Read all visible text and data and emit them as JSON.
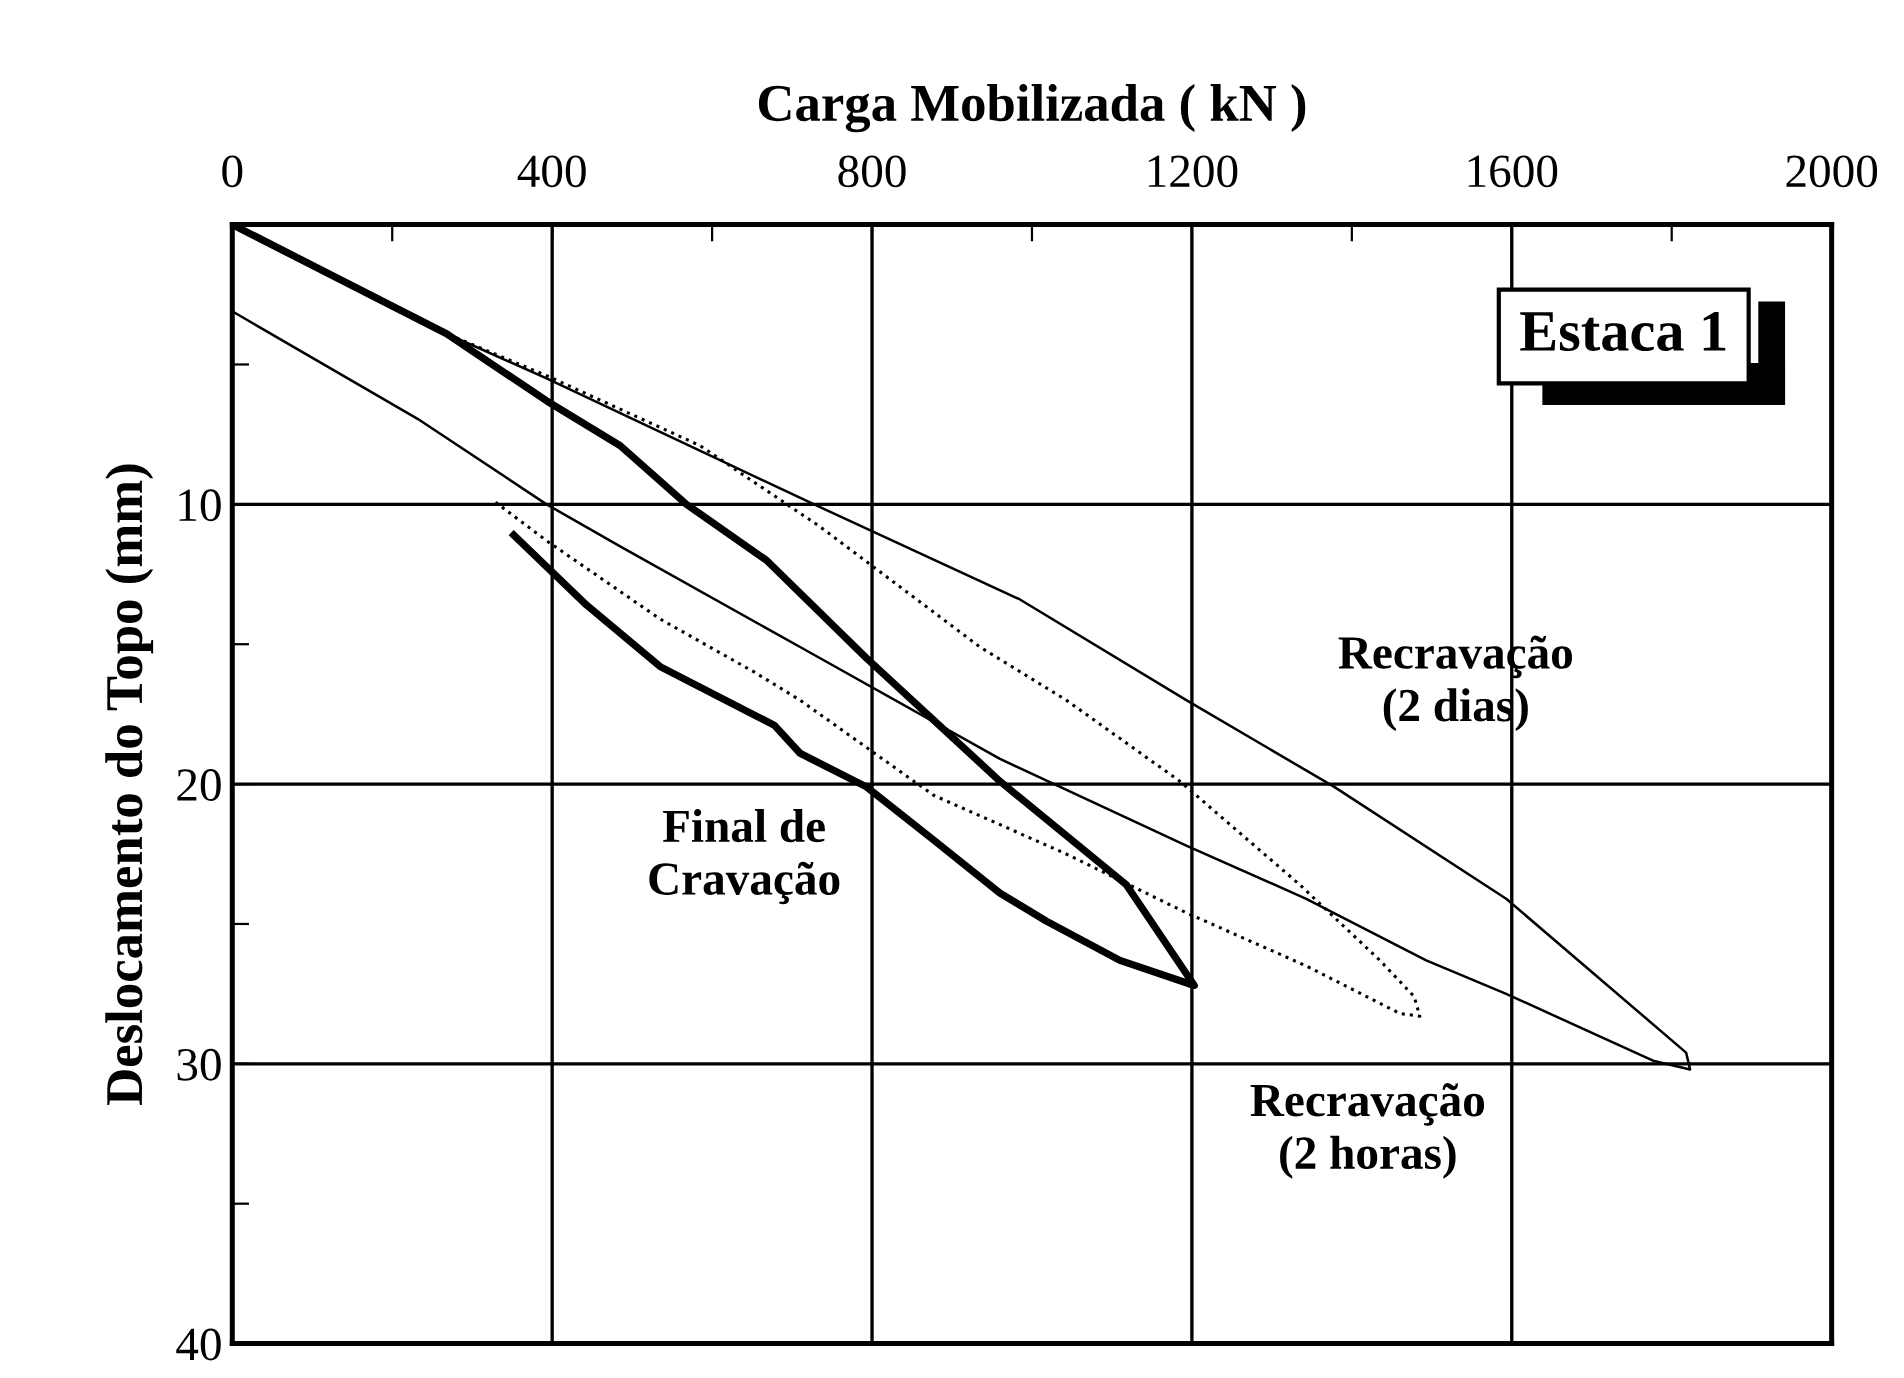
{
  "chart_data": {
    "type": "line",
    "xlabel": "Carga Mobilizada ( kN )",
    "ylabel": "Deslocamento do Topo (mm)",
    "xlim": [
      0,
      2000
    ],
    "ylim": [
      40,
      0
    ],
    "xticks": [
      0,
      {
        "value": 200,
        "label": null
      },
      400,
      {
        "value": 600,
        "label": null
      },
      800,
      {
        "value": 1000,
        "label": null
      },
      1200,
      {
        "value": 1400,
        "label": null
      },
      1600,
      {
        "value": 1800,
        "label": null
      },
      2000
    ],
    "yticks": [
      {
        "value": 0,
        "label": null
      },
      {
        "value": 5,
        "label": null
      },
      10,
      {
        "value": 15,
        "label": null
      },
      20,
      {
        "value": 25,
        "label": null
      },
      30,
      {
        "value": 35,
        "label": null
      },
      40
    ],
    "grid": true,
    "marker": "none",
    "series": [
      {
        "color": "#000000",
        "line_style": "solid",
        "x": [
          0,
          268,
          393,
          485,
          568,
          668,
          793,
          960,
          1118,
          1203,
          1110,
          1018,
          960,
          877,
          793,
          710,
          678,
          535,
          443,
          352
        ],
        "values": [
          0,
          3.9,
          6.3,
          7.9,
          10,
          12,
          15.5,
          19.9,
          23.6,
          27.2,
          26.3,
          24.9,
          23.9,
          22,
          20.1,
          18.9,
          17.9,
          15.8,
          13.6,
          11.1
        ]
      },
      {
        "color": "#000000",
        "line_style": "dotted",
        "x": [
          0,
          268,
          393,
          585,
          735,
          935,
          1043,
          1185,
          1335,
          1435,
          1478,
          1485,
          1460,
          1343,
          1193,
          1043,
          877,
          710,
          653,
          535,
          393,
          328
        ],
        "values": [
          0,
          3.9,
          5.4,
          7.9,
          10.8,
          15.1,
          17,
          19.9,
          23.6,
          26.3,
          27.6,
          28.3,
          28.2,
          26.5,
          24.6,
          22.5,
          20.4,
          17,
          16,
          14.1,
          11.3,
          9.9
        ]
      },
      {
        "color": "#000000",
        "line_style": "solid",
        "x": [
          0,
          268,
          393,
          735,
          985,
          1193,
          1378,
          1593,
          1818,
          1823,
          1778,
          1593,
          1493,
          1343,
          1193,
          960,
          710,
          485,
          393,
          235,
          0
        ],
        "values": [
          0,
          3.9,
          5.5,
          10.1,
          13.4,
          17,
          20.1,
          24.1,
          29.6,
          30.2,
          29.9,
          27.5,
          26.3,
          24.1,
          22.2,
          19.1,
          15.1,
          11.5,
          10,
          7,
          3.1
        ]
      }
    ],
    "annotations": [
      "Estaca 1",
      "Recravação\n(2 dias)",
      "Final de\nCravação",
      "Recravação\n(2 horas)"
    ]
  }
}
